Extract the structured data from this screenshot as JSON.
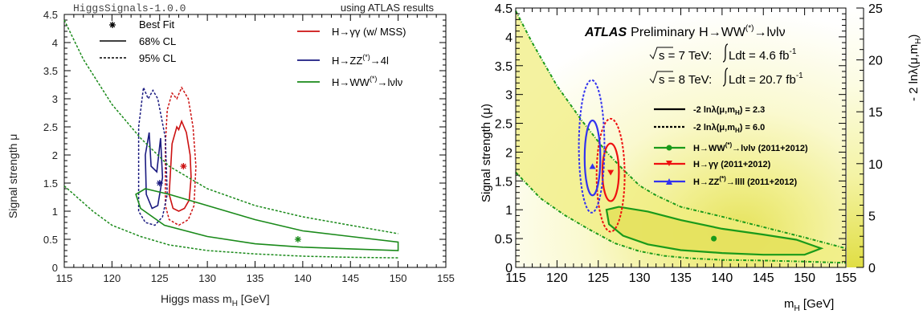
{
  "chart_data": [
    {
      "type": "scatter",
      "corner_left": "HiggsSignals-1.0.0",
      "corner_right": "using ATLAS results",
      "xlabel": "Higgs mass m",
      "xlabel_sub": "H",
      "xlabel_unit": " [GeV]",
      "ylabel": "Signal strength μ",
      "xlim": [
        115,
        155
      ],
      "ylim": [
        0,
        4.5
      ],
      "xticks": [
        "115",
        "120",
        "125",
        "130",
        "135",
        "140",
        "145",
        "150",
        "155"
      ],
      "yticks": [
        "0",
        "0.5",
        "1",
        "1.5",
        "2",
        "2.5",
        "3",
        "3.5",
        "4",
        "4.5"
      ],
      "legend_styles": [
        {
          "marker": "star",
          "label": "Best Fit"
        },
        {
          "line": "solid",
          "label": "68% CL"
        },
        {
          "line": "dashed",
          "label": "95% CL"
        }
      ],
      "legend_channels": [
        {
          "color": "#cc1111",
          "label": "H→γγ (w/ MSS)"
        },
        {
          "color": "#1a1a80",
          "label": "H→ZZ",
          "sup": "(*)",
          "tail": "→4l"
        },
        {
          "color": "#1a8a1a",
          "label": "H→WW",
          "sup": "(*)",
          "tail": "→lνlν"
        }
      ],
      "series": [
        {
          "name": "H→γγ (w/ MSS)",
          "color": "#cc1111",
          "best_fit": [
            127.5,
            1.8
          ],
          "cl68": [
            [
              126.0,
              1.3
            ],
            [
              126.2,
              1.9
            ],
            [
              126.3,
              2.2
            ],
            [
              126.8,
              2.5
            ],
            [
              127.0,
              2.45
            ],
            [
              127.3,
              2.6
            ],
            [
              127.8,
              2.4
            ],
            [
              128.2,
              2.0
            ],
            [
              128.3,
              1.6
            ],
            [
              128.1,
              1.2
            ],
            [
              127.6,
              1.05
            ],
            [
              127.0,
              1.0
            ],
            [
              126.4,
              1.05
            ],
            [
              126.0,
              1.3
            ]
          ],
          "cl95": [
            [
              125.6,
              1.1
            ],
            [
              125.6,
              2.2
            ],
            [
              125.8,
              2.8
            ],
            [
              126.3,
              3.1
            ],
            [
              126.8,
              3.0
            ],
            [
              127.3,
              3.2
            ],
            [
              128.0,
              3.0
            ],
            [
              128.5,
              2.5
            ],
            [
              128.8,
              1.8
            ],
            [
              128.6,
              1.1
            ],
            [
              128.0,
              0.85
            ],
            [
              127.0,
              0.75
            ],
            [
              126.0,
              0.85
            ],
            [
              125.6,
              1.1
            ]
          ]
        },
        {
          "name": "H→ZZ(*)→4l",
          "color": "#1a1a80",
          "best_fit": [
            125.0,
            1.5
          ],
          "cl68": [
            [
              123.6,
              1.3
            ],
            [
              123.5,
              2.0
            ],
            [
              123.9,
              2.4
            ],
            [
              124.1,
              1.8
            ],
            [
              124.7,
              1.7
            ],
            [
              125.1,
              2.3
            ],
            [
              125.3,
              1.6
            ],
            [
              124.8,
              1.1
            ],
            [
              124.2,
              1.05
            ],
            [
              123.6,
              1.3
            ]
          ],
          "cl95": [
            [
              122.8,
              1.0
            ],
            [
              122.8,
              2.5
            ],
            [
              123.3,
              3.2
            ],
            [
              123.8,
              3.0
            ],
            [
              124.3,
              3.15
            ],
            [
              124.8,
              3.0
            ],
            [
              125.6,
              2.3
            ],
            [
              125.8,
              1.3
            ],
            [
              125.3,
              0.9
            ],
            [
              124.5,
              0.75
            ],
            [
              123.5,
              0.8
            ],
            [
              122.8,
              1.0
            ]
          ]
        },
        {
          "name": "H→WW(*)→lνlν",
          "color": "#1a8a1a",
          "best_fit": [
            139.5,
            0.5
          ],
          "cl68": [
            [
              122.5,
              1.3
            ],
            [
              123.5,
              1.4
            ],
            [
              126,
              1.3
            ],
            [
              130,
              1.1
            ],
            [
              135,
              0.85
            ],
            [
              140,
              0.65
            ],
            [
              145,
              0.55
            ],
            [
              150,
              0.45
            ],
            [
              150,
              0.3
            ],
            [
              145,
              0.33
            ],
            [
              140,
              0.36
            ],
            [
              135,
              0.42
            ],
            [
              130,
              0.55
            ],
            [
              125.5,
              0.75
            ],
            [
              123,
              1.05
            ],
            [
              122.5,
              1.3
            ]
          ],
          "cl95_upper": [
            [
              115,
              4.4
            ],
            [
              117,
              3.7
            ],
            [
              120,
              2.9
            ],
            [
              123,
              2.3
            ],
            [
              126,
              1.8
            ],
            [
              130,
              1.4
            ],
            [
              135,
              1.1
            ],
            [
              140,
              0.9
            ],
            [
              145,
              0.75
            ],
            [
              150,
              0.6
            ]
          ],
          "cl95_lower": [
            [
              115,
              1.45
            ],
            [
              118,
              1.0
            ],
            [
              120,
              0.75
            ],
            [
              123,
              0.55
            ],
            [
              126,
              0.4
            ],
            [
              130,
              0.3
            ],
            [
              135,
              0.24
            ],
            [
              140,
              0.2
            ],
            [
              145,
              0.18
            ],
            [
              150,
              0.17
            ]
          ]
        }
      ]
    },
    {
      "type": "heatmap",
      "xlabel": "m",
      "xlabel_sub": "H",
      "xlabel_unit": " [GeV]",
      "ylabel": "Signal strength (μ)",
      "zlabel": "- 2 ln",
      "zlabel_lambda": "λ",
      "zlabel_paren": "(μ,m",
      "zlabel_sub": "H",
      "zlabel_close": ")",
      "xlim": [
        115,
        155
      ],
      "ylim": [
        0,
        4.5
      ],
      "zlim": [
        0,
        25
      ],
      "xticks": [
        "115",
        "120",
        "125",
        "130",
        "135",
        "140",
        "145",
        "150",
        "155"
      ],
      "yticks": [
        "0",
        "0.5",
        "1",
        "1.5",
        "2",
        "2.5",
        "3",
        "3.5",
        "4",
        "4.5"
      ],
      "zticks": [
        "0",
        "5",
        "10",
        "15",
        "20",
        "25"
      ],
      "atlas": "ATLAS",
      "preliminary": "Preliminary",
      "channel_title": "H→WW",
      "channel_title_sup": "(*)",
      "channel_title_tail": "→lνlν",
      "energy_lines": [
        {
          "sqrt_s": "s = 7 TeV:",
          "lumi_pre": "Ldt = 4.6 fb",
          "lumi_sup": "-1"
        },
        {
          "sqrt_s": "s = 8 TeV:",
          "lumi_pre": "Ldt = 20.7 fb",
          "lumi_sup": "-1"
        }
      ],
      "legend_lines": [
        {
          "line": "solid",
          "pre": "-2 ln",
          "lambda": "λ",
          "mid": "(μ,m",
          "sub": "H",
          "post": ") = 2.3"
        },
        {
          "line": "dashed",
          "pre": "-2 ln",
          "lambda": "λ",
          "mid": "(μ,m",
          "sub": "H",
          "post": ") = 6.0"
        }
      ],
      "legend_channels": [
        {
          "color": "#1a9a1a",
          "marker": "circle",
          "label": "H→WW",
          "sup": "(*)",
          "tail": "→lνlν (2011+2012)"
        },
        {
          "color": "#ee1111",
          "marker": "triangle-down",
          "label": "H→γγ (2011+2012)",
          "sup": "",
          "tail": ""
        },
        {
          "color": "#3333ee",
          "marker": "triangle-up",
          "label": "H→ZZ",
          "sup": "(*)",
          "tail": "→llll (2011+2012)"
        }
      ],
      "series": [
        {
          "name": "H→WW(*)→lνlν",
          "color": "#1a9a1a",
          "best_fit": [
            139,
            0.5
          ],
          "cl68": [
            [
              126,
              1.0
            ],
            [
              127.5,
              1.05
            ],
            [
              131,
              0.97
            ],
            [
              135,
              0.82
            ],
            [
              140,
              0.67
            ],
            [
              145,
              0.57
            ],
            [
              149,
              0.48
            ],
            [
              152,
              0.33
            ],
            [
              150,
              0.22
            ],
            [
              145,
              0.22
            ],
            [
              140,
              0.25
            ],
            [
              135,
              0.3
            ],
            [
              131,
              0.4
            ],
            [
              128,
              0.55
            ],
            [
              126.3,
              0.75
            ],
            [
              126,
              1.0
            ]
          ],
          "cl95_upper": [
            [
              115,
              4.45
            ],
            [
              117,
              3.9
            ],
            [
              120,
              3.15
            ],
            [
              123,
              2.55
            ],
            [
              126,
              2.0
            ],
            [
              128,
              1.7
            ],
            [
              130,
              1.42
            ],
            [
              132,
              1.25
            ],
            [
              135,
              1.05
            ],
            [
              140,
              0.88
            ],
            [
              145,
              0.7
            ],
            [
              150,
              0.52
            ],
            [
              155,
              0.33
            ]
          ],
          "cl95_lower": [
            [
              115,
              1.65
            ],
            [
              118,
              1.2
            ],
            [
              121,
              0.9
            ],
            [
              124,
              0.65
            ],
            [
              127,
              0.42
            ],
            [
              130,
              0.28
            ],
            [
              133,
              0.2
            ],
            [
              136,
              0.16
            ],
            [
              140,
              0.13
            ],
            [
              145,
              0.12
            ],
            [
              150,
              0.1
            ],
            [
              155,
              0.08
            ]
          ]
        },
        {
          "name": "H→γγ (2011+2012)",
          "color": "#ee1111",
          "best_fit": [
            126.5,
            1.65
          ],
          "cl68_ellipse": {
            "cx": 126.5,
            "cy": 1.65,
            "rx": 1.0,
            "ry": 0.5
          },
          "cl95_ellipse": {
            "cx": 126.5,
            "cy": 1.6,
            "rx": 1.7,
            "ry": 0.98
          }
        },
        {
          "name": "H→ZZ(*)→llll (2011+2012)",
          "color": "#3333ee",
          "best_fit": [
            124.3,
            1.75
          ],
          "cl68_ellipse": {
            "cx": 124.3,
            "cy": 1.9,
            "rx": 0.95,
            "ry": 0.65
          },
          "cl95_ellipse": {
            "cx": 124.2,
            "cy": 2.1,
            "rx": 1.55,
            "ry": 1.15
          }
        }
      ]
    }
  ]
}
